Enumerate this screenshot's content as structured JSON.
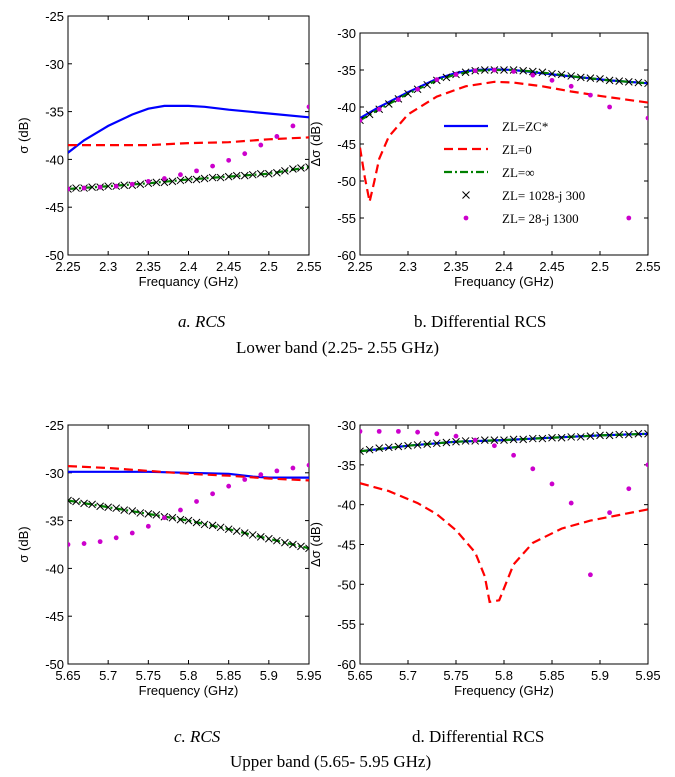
{
  "captions": {
    "a": "a. RCS",
    "b": "b. Differential RCS",
    "c": "c. RCS",
    "d": "d. Differential RCS",
    "lower_band": "Lower band (2.25- 2.55 GHz)",
    "upper_band": "Upper band (5.65- 5.95 GHz)"
  },
  "legend": [
    {
      "label": "ZL=ZC*",
      "style": "solid",
      "color": "#0000ff"
    },
    {
      "label": "ZL=0",
      "style": "dashed",
      "color": "#ff0000"
    },
    {
      "label": "ZL=∞",
      "style": "dashdot",
      "color": "#008000"
    },
    {
      "label": "ZL= 1028-j 300",
      "style": "x-marker",
      "color": "#000000"
    },
    {
      "label": "ZL= 28-j 1300",
      "style": "dot-marker",
      "color": "#cc00cc"
    }
  ],
  "chart_data": [
    {
      "type": "line",
      "xlabel": "Frequancy (GHz)",
      "ylabel": "σ (dB)",
      "xlim": [
        2.25,
        2.55
      ],
      "ylim": [
        -50,
        -25
      ],
      "xticks": [
        2.25,
        2.3,
        2.35,
        2.4,
        2.45,
        2.5,
        2.55
      ],
      "yticks": [
        -50,
        -45,
        -40,
        -35,
        -30,
        -25
      ],
      "series": [
        {
          "name": "ZL=ZC*",
          "color": "#0000ff",
          "style": "solid",
          "x": [
            2.25,
            2.27,
            2.3,
            2.33,
            2.35,
            2.37,
            2.4,
            2.42,
            2.45,
            2.5,
            2.55
          ],
          "y": [
            -39.3,
            -38.0,
            -36.5,
            -35.3,
            -34.7,
            -34.4,
            -34.4,
            -34.5,
            -34.8,
            -35.2,
            -35.6
          ]
        },
        {
          "name": "ZL=0",
          "color": "#ff0000",
          "style": "dashed",
          "x": [
            2.25,
            2.3,
            2.35,
            2.4,
            2.45,
            2.5,
            2.55
          ],
          "y": [
            -38.5,
            -38.5,
            -38.5,
            -38.3,
            -38.2,
            -37.9,
            -37.7
          ]
        },
        {
          "name": "ZL=∞",
          "color": "#008000",
          "style": "dashdot",
          "x": [
            2.25,
            2.3,
            2.35,
            2.4,
            2.45,
            2.5,
            2.55
          ],
          "y": [
            -43.1,
            -42.8,
            -42.5,
            -42.1,
            -41.8,
            -41.5,
            -40.8
          ]
        },
        {
          "name": "ZL= 1028-j 300",
          "color": "#000000",
          "style": "x-marker",
          "x": [
            2.25,
            2.26,
            2.27,
            2.28,
            2.29,
            2.3,
            2.31,
            2.32,
            2.33,
            2.34,
            2.35,
            2.36,
            2.37,
            2.38,
            2.39,
            2.4,
            2.41,
            2.42,
            2.43,
            2.44,
            2.45,
            2.46,
            2.47,
            2.48,
            2.49,
            2.5,
            2.51,
            2.52,
            2.53,
            2.54,
            2.55
          ],
          "y": [
            -43.1,
            -43.0,
            -43.0,
            -42.9,
            -42.9,
            -42.8,
            -42.8,
            -42.7,
            -42.7,
            -42.6,
            -42.5,
            -42.4,
            -42.4,
            -42.3,
            -42.2,
            -42.1,
            -42.1,
            -42.0,
            -41.9,
            -41.9,
            -41.8,
            -41.7,
            -41.7,
            -41.6,
            -41.5,
            -41.5,
            -41.4,
            -41.2,
            -41.0,
            -40.9,
            -40.8
          ]
        },
        {
          "name": "ZL= 28-j 1300",
          "color": "#cc00cc",
          "style": "dot-marker",
          "x": [
            2.25,
            2.27,
            2.29,
            2.31,
            2.33,
            2.35,
            2.37,
            2.39,
            2.41,
            2.43,
            2.45,
            2.47,
            2.49,
            2.51,
            2.53,
            2.55
          ],
          "y": [
            -43.1,
            -43.0,
            -42.9,
            -42.8,
            -42.6,
            -42.3,
            -42.0,
            -41.6,
            -41.2,
            -40.7,
            -40.1,
            -39.4,
            -38.5,
            -37.6,
            -36.5,
            -34.5
          ]
        }
      ]
    },
    {
      "type": "line",
      "xlabel": "Frequancy (GHz)",
      "ylabel": "Δσ (dB)",
      "xlim": [
        2.25,
        2.55
      ],
      "ylim": [
        -60,
        -30
      ],
      "xticks": [
        2.25,
        2.3,
        2.35,
        2.4,
        2.45,
        2.5,
        2.55
      ],
      "yticks": [
        -60,
        -55,
        -50,
        -45,
        -40,
        -35,
        -30
      ],
      "series": [
        {
          "name": "ZL=ZC*",
          "color": "#0000ff",
          "style": "solid",
          "x": [
            2.25,
            2.27,
            2.3,
            2.33,
            2.35,
            2.37,
            2.39,
            2.41,
            2.43,
            2.45,
            2.48,
            2.51,
            2.55
          ],
          "y": [
            -41.5,
            -40.0,
            -38.0,
            -36.2,
            -35.4,
            -35.0,
            -34.9,
            -35.0,
            -35.3,
            -35.6,
            -36.0,
            -36.4,
            -36.8
          ]
        },
        {
          "name": "ZL=0",
          "color": "#ff0000",
          "style": "dashed",
          "x": [
            2.25,
            2.255,
            2.26,
            2.265,
            2.27,
            2.28,
            2.3,
            2.33,
            2.36,
            2.39,
            2.41,
            2.44,
            2.47,
            2.5,
            2.55
          ],
          "y": [
            -45.5,
            -49.5,
            -52.8,
            -50.0,
            -47.0,
            -44.0,
            -41.0,
            -38.6,
            -37.2,
            -36.6,
            -36.7,
            -37.2,
            -37.9,
            -38.5,
            -39.4
          ]
        },
        {
          "name": "ZL=∞",
          "color": "#008000",
          "style": "dashdot",
          "x": [
            2.25,
            2.27,
            2.3,
            2.33,
            2.35,
            2.37,
            2.39,
            2.41,
            2.43,
            2.45,
            2.48,
            2.51,
            2.55
          ],
          "y": [
            -41.8,
            -40.3,
            -38.2,
            -36.4,
            -35.6,
            -35.1,
            -35.0,
            -35.0,
            -35.2,
            -35.5,
            -36.0,
            -36.4,
            -36.8
          ]
        },
        {
          "name": "ZL= 1028-j 300",
          "color": "#000000",
          "style": "x-marker",
          "x": [
            2.25,
            2.26,
            2.27,
            2.28,
            2.29,
            2.3,
            2.31,
            2.32,
            2.33,
            2.34,
            2.35,
            2.36,
            2.37,
            2.38,
            2.39,
            2.4,
            2.41,
            2.42,
            2.43,
            2.44,
            2.45,
            2.46,
            2.47,
            2.48,
            2.49,
            2.5,
            2.51,
            2.52,
            2.53,
            2.54,
            2.55
          ],
          "y": [
            -41.8,
            -41.0,
            -40.3,
            -39.6,
            -38.9,
            -38.2,
            -37.6,
            -37.0,
            -36.4,
            -36.0,
            -35.6,
            -35.3,
            -35.1,
            -35.0,
            -35.0,
            -35.0,
            -35.0,
            -35.1,
            -35.2,
            -35.3,
            -35.5,
            -35.6,
            -35.8,
            -36.0,
            -36.1,
            -36.2,
            -36.4,
            -36.5,
            -36.6,
            -36.7,
            -36.8
          ]
        },
        {
          "name": "ZL= 28-j 1300",
          "color": "#cc00cc",
          "style": "dot-marker",
          "x": [
            2.25,
            2.27,
            2.29,
            2.31,
            2.33,
            2.35,
            2.37,
            2.39,
            2.41,
            2.43,
            2.45,
            2.47,
            2.49,
            2.51,
            2.53,
            2.55
          ],
          "y": [
            -41.8,
            -40.3,
            -39.0,
            -37.6,
            -36.3,
            -35.6,
            -35.1,
            -35.0,
            -35.2,
            -35.7,
            -36.4,
            -37.2,
            -38.4,
            -40.0,
            -55.0,
            -41.5
          ]
        }
      ]
    },
    {
      "type": "line",
      "xlabel": "Frequency (GHz)",
      "ylabel": "σ (dB)",
      "xlim": [
        5.65,
        5.95
      ],
      "ylim": [
        -50,
        -25
      ],
      "xticks": [
        5.65,
        5.7,
        5.75,
        5.8,
        5.85,
        5.9,
        5.95
      ],
      "yticks": [
        -50,
        -45,
        -40,
        -35,
        -30,
        -25
      ],
      "series": [
        {
          "name": "ZL=ZC*",
          "color": "#0000ff",
          "style": "solid",
          "x": [
            5.65,
            5.7,
            5.75,
            5.8,
            5.85,
            5.88,
            5.9,
            5.95
          ],
          "y": [
            -29.9,
            -29.9,
            -29.9,
            -30.0,
            -30.1,
            -30.4,
            -30.5,
            -30.5
          ]
        },
        {
          "name": "ZL=0",
          "color": "#ff0000",
          "style": "dashed",
          "x": [
            5.65,
            5.7,
            5.75,
            5.8,
            5.85,
            5.9,
            5.95
          ],
          "y": [
            -29.3,
            -29.5,
            -29.8,
            -30.1,
            -30.3,
            -30.6,
            -30.8
          ]
        },
        {
          "name": "ZL=∞",
          "color": "#008000",
          "style": "dashdot",
          "x": [
            5.65,
            5.7,
            5.75,
            5.8,
            5.85,
            5.9,
            5.95
          ],
          "y": [
            -32.9,
            -33.6,
            -34.3,
            -35.0,
            -35.9,
            -36.9,
            -37.9
          ]
        },
        {
          "name": "ZL= 1028-j 300",
          "color": "#000000",
          "style": "x-marker",
          "x": [
            5.65,
            5.66,
            5.67,
            5.68,
            5.69,
            5.7,
            5.71,
            5.72,
            5.73,
            5.74,
            5.75,
            5.76,
            5.77,
            5.78,
            5.79,
            5.8,
            5.81,
            5.82,
            5.83,
            5.84,
            5.85,
            5.86,
            5.87,
            5.88,
            5.89,
            5.9,
            5.91,
            5.92,
            5.93,
            5.94,
            5.95
          ],
          "y": [
            -32.9,
            -33.0,
            -33.2,
            -33.3,
            -33.5,
            -33.6,
            -33.7,
            -33.9,
            -34.0,
            -34.2,
            -34.3,
            -34.4,
            -34.6,
            -34.7,
            -34.9,
            -35.0,
            -35.2,
            -35.4,
            -35.5,
            -35.7,
            -35.9,
            -36.1,
            -36.3,
            -36.5,
            -36.7,
            -36.9,
            -37.1,
            -37.3,
            -37.5,
            -37.7,
            -37.9
          ]
        },
        {
          "name": "ZL= 28-j 1300",
          "color": "#cc00cc",
          "style": "dot-marker",
          "x": [
            5.65,
            5.67,
            5.69,
            5.71,
            5.73,
            5.75,
            5.77,
            5.79,
            5.81,
            5.83,
            5.85,
            5.87,
            5.89,
            5.91,
            5.93,
            5.95
          ],
          "y": [
            -37.5,
            -37.4,
            -37.2,
            -36.8,
            -36.3,
            -35.6,
            -34.7,
            -33.9,
            -33.0,
            -32.2,
            -31.4,
            -30.7,
            -30.2,
            -29.8,
            -29.5,
            -29.2
          ]
        }
      ]
    },
    {
      "type": "line",
      "xlabel": "Frequency (GHz)",
      "ylabel": "Δσ (dB)",
      "xlim": [
        5.65,
        5.95
      ],
      "ylim": [
        -60,
        -30
      ],
      "xticks": [
        5.65,
        5.7,
        5.75,
        5.8,
        5.85,
        5.9,
        5.95
      ],
      "yticks": [
        -60,
        -55,
        -50,
        -45,
        -40,
        -35,
        -30
      ],
      "series": [
        {
          "name": "ZL=ZC*",
          "color": "#0000ff",
          "style": "solid",
          "x": [
            5.65,
            5.7,
            5.75,
            5.8,
            5.85,
            5.9,
            5.95
          ],
          "y": [
            -33.3,
            -32.6,
            -32.1,
            -31.9,
            -31.6,
            -31.3,
            -31.1
          ]
        },
        {
          "name": "ZL=0",
          "color": "#ff0000",
          "style": "dashed",
          "x": [
            5.65,
            5.68,
            5.71,
            5.73,
            5.75,
            5.77,
            5.78,
            5.785,
            5.795,
            5.8,
            5.81,
            5.83,
            5.86,
            5.89,
            5.92,
            5.95
          ],
          "y": [
            -37.3,
            -38.3,
            -39.8,
            -41.2,
            -43.2,
            -46.0,
            -49.0,
            -52.2,
            -52.0,
            -50.5,
            -47.5,
            -44.8,
            -43.0,
            -42.0,
            -41.3,
            -40.6
          ]
        },
        {
          "name": "ZL=∞",
          "color": "#008000",
          "style": "dashdot",
          "x": [
            5.65,
            5.7,
            5.75,
            5.8,
            5.85,
            5.9,
            5.95
          ],
          "y": [
            -33.3,
            -32.6,
            -32.1,
            -31.9,
            -31.6,
            -31.3,
            -31.1
          ]
        },
        {
          "name": "ZL= 1028-j 300",
          "color": "#000000",
          "style": "x-marker",
          "x": [
            5.65,
            5.66,
            5.67,
            5.68,
            5.69,
            5.7,
            5.71,
            5.72,
            5.73,
            5.74,
            5.75,
            5.76,
            5.77,
            5.78,
            5.79,
            5.8,
            5.81,
            5.82,
            5.83,
            5.84,
            5.85,
            5.86,
            5.87,
            5.88,
            5.89,
            5.9,
            5.91,
            5.92,
            5.93,
            5.94,
            5.95
          ],
          "y": [
            -33.3,
            -33.1,
            -32.9,
            -32.8,
            -32.7,
            -32.6,
            -32.5,
            -32.4,
            -32.3,
            -32.2,
            -32.1,
            -32.0,
            -32.0,
            -31.9,
            -31.9,
            -31.9,
            -31.8,
            -31.8,
            -31.7,
            -31.7,
            -31.6,
            -31.6,
            -31.5,
            -31.5,
            -31.4,
            -31.3,
            -31.3,
            -31.2,
            -31.2,
            -31.1,
            -31.1
          ]
        },
        {
          "name": "ZL= 28-j 1300",
          "color": "#cc00cc",
          "style": "dot-marker",
          "x": [
            5.65,
            5.67,
            5.69,
            5.71,
            5.73,
            5.75,
            5.77,
            5.79,
            5.81,
            5.83,
            5.85,
            5.87,
            5.89,
            5.91,
            5.93,
            5.95
          ],
          "y": [
            -30.8,
            -30.8,
            -30.8,
            -30.9,
            -31.1,
            -31.4,
            -31.9,
            -32.6,
            -33.8,
            -35.5,
            -37.4,
            -39.8,
            -48.8,
            -41.0,
            -38.0,
            -35.0
          ]
        }
      ]
    }
  ]
}
